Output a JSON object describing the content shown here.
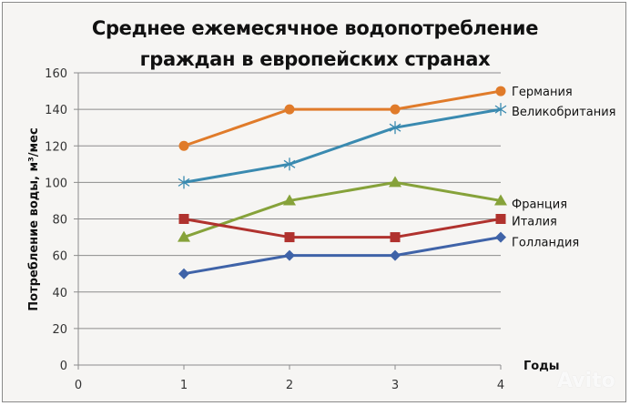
{
  "chart_data": {
    "type": "line",
    "title": "Среднее ежемесячное водопотребление граждан в европейских странах",
    "title_lines": [
      "Среднее ежемесячное водопотребление",
      "граждан в европейских странах"
    ],
    "xlabel": "Годы",
    "ylabel": "Потребление воды, м³/мес",
    "x": [
      1,
      2,
      3,
      4
    ],
    "xlim": [
      0,
      4
    ],
    "ylim": [
      0,
      160
    ],
    "xticks": [
      0,
      1,
      2,
      3,
      4
    ],
    "yticks": [
      0,
      20,
      40,
      60,
      80,
      100,
      120,
      140,
      160
    ],
    "grid": "horizontal",
    "legend_position": "inline-right",
    "series": [
      {
        "name": "Германия",
        "values": [
          120,
          140,
          140,
          150
        ],
        "color": "#e07b2a",
        "marker": "circle"
      },
      {
        "name": "Великобритания",
        "values": [
          100,
          110,
          130,
          140
        ],
        "color": "#3a8ab0",
        "marker": "asterisk"
      },
      {
        "name": "Франция",
        "values": [
          70,
          90,
          100,
          90
        ],
        "color": "#86a23a",
        "marker": "triangle"
      },
      {
        "name": "Италия",
        "values": [
          80,
          70,
          70,
          80
        ],
        "color": "#b0322e",
        "marker": "square"
      },
      {
        "name": "Голландия",
        "values": [
          50,
          60,
          60,
          70
        ],
        "color": "#3f63a8",
        "marker": "diamond"
      }
    ]
  },
  "watermark": "Avito"
}
